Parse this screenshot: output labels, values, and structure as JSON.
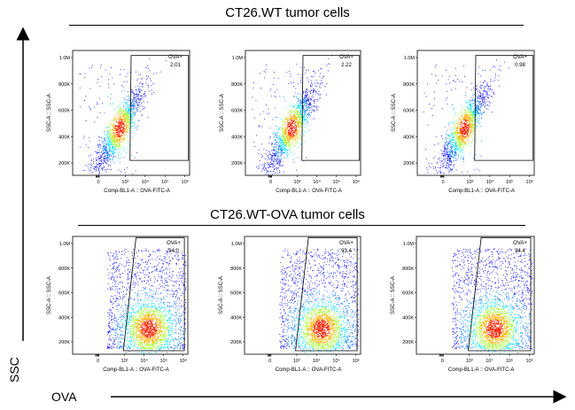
{
  "groups": [
    {
      "title": "CT26.WT tumor cells"
    },
    {
      "title": "CT26.WT-OVA tumor cells"
    }
  ],
  "axes": {
    "y_label": "SSC",
    "x_label": "OVA"
  },
  "colors": {
    "low": "#1010ff",
    "mid": "#00e0ff",
    "high": "#ff1000"
  },
  "chart_data": [
    {
      "type": "scatter",
      "group": "CT26.WT tumor cells",
      "xlabel": "Comp-BL1-A :: OVA-FITC-A",
      "ylabel": "SSC-A :: SSC-A",
      "yticks": [
        "200K",
        "400K",
        "600K",
        "800K",
        "1.0M"
      ],
      "xticks": [
        "0",
        "10^3",
        "10^4",
        "10^5",
        "10^6"
      ],
      "gate": {
        "name": "OVA+",
        "value": "2.01"
      },
      "density": "low"
    },
    {
      "type": "scatter",
      "group": "CT26.WT tumor cells",
      "xlabel": "Comp-BL1-A :: OVA-FITC-A",
      "ylabel": "SSC-A :: SSC-A",
      "yticks": [
        "200K",
        "400K",
        "600K",
        "800K",
        "1.0M"
      ],
      "xticks": [
        "0",
        "10^3",
        "10^4",
        "10^5",
        "10^6"
      ],
      "gate": {
        "name": "OVA+",
        "value": "2.22"
      },
      "density": "low"
    },
    {
      "type": "scatter",
      "group": "CT26.WT tumor cells",
      "xlabel": "Comp-BL1-A :: OVA-FITC-A",
      "ylabel": "SSC-A :: SSC-A",
      "yticks": [
        "200K",
        "400K",
        "600K",
        "800K",
        "1.0M"
      ],
      "xticks": [
        "0",
        "10^3",
        "10^4",
        "10^5",
        "10^6"
      ],
      "gate": {
        "name": "OVA+",
        "value": "0.98"
      },
      "density": "low"
    },
    {
      "type": "scatter",
      "group": "CT26.WT-OVA tumor cells",
      "xlabel": "Comp-BL1-A :: OVA-FITC-A",
      "ylabel": "SSC-A :: SSC-A",
      "yticks": [
        "200K",
        "400K",
        "600K",
        "800K",
        "1.0M"
      ],
      "xticks": [
        "0",
        "10^3",
        "10^4",
        "10^5",
        "10^6"
      ],
      "gate": {
        "name": "OVA+",
        "value": "94.0"
      },
      "density": "high"
    },
    {
      "type": "scatter",
      "group": "CT26.WT-OVA tumor cells",
      "xlabel": "Comp-BL1-A :: OVA-FITC-A",
      "ylabel": "SSC-A :: SSC-A",
      "yticks": [
        "200K",
        "400K",
        "600K",
        "800K",
        "1.0M"
      ],
      "xticks": [
        "0",
        "10^3",
        "10^4",
        "10^5",
        "10^6"
      ],
      "gate": {
        "name": "OVA+",
        "value": "93.4"
      },
      "density": "high"
    },
    {
      "type": "scatter",
      "group": "CT26.WT-OVA tumor cells",
      "xlabel": "Comp-BL1-A :: OVA-FITC-A",
      "ylabel": "SSC-A :: SSC-A",
      "yticks": [
        "200K",
        "400K",
        "600K",
        "800K",
        "1.0M"
      ],
      "xticks": [
        "0",
        "10^3",
        "10^4",
        "10^5",
        "10^6"
      ],
      "gate": {
        "name": "OVA+",
        "value": "94.4"
      },
      "density": "high"
    }
  ]
}
